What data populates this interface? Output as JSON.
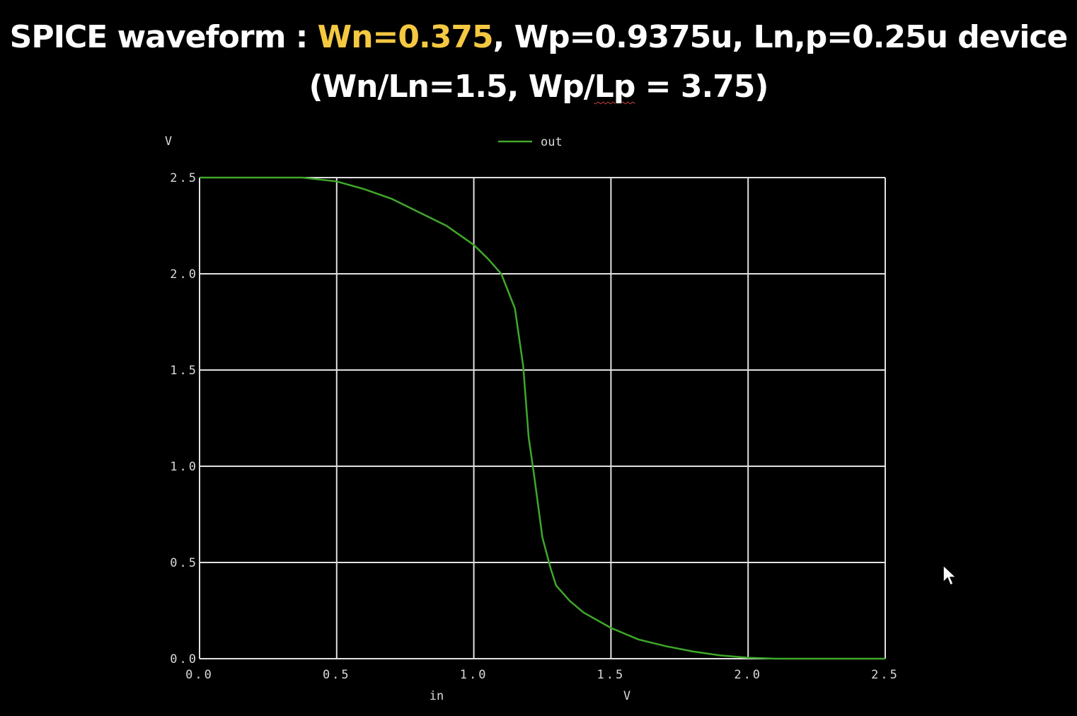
{
  "title": {
    "line1_prefix": "SPICE waveform : ",
    "line1_highlight": "Wn=0.375",
    "line1_suffix": ", Wp=0.9375u, Ln,p=0.25u device",
    "line2_prefix": "(Wn/Ln=1.5, Wp/",
    "line2_squiggle": "Lp",
    "line2_suffix": " = 3.75)"
  },
  "colors": {
    "background": "#000000",
    "title_text": "#ffffff",
    "title_highlight": "#f5c842",
    "grid": "#e0e0e0",
    "series_out": "#3fa82a",
    "tick_text": "#d8d8d8"
  },
  "chart_data": {
    "type": "line",
    "title": "",
    "xlabel": "in",
    "xunit": "V",
    "ylabel": "",
    "yunit": "V",
    "xlim": [
      0.0,
      2.5
    ],
    "ylim": [
      0.0,
      2.5
    ],
    "xticks": [
      "0.0",
      "0.5",
      "1.0",
      "1.5",
      "2.0",
      "2.5"
    ],
    "yticks": [
      "0.0",
      "0.5",
      "1.0",
      "1.5",
      "2.0",
      "2.5"
    ],
    "grid": true,
    "legend_position": "top-center",
    "series": [
      {
        "name": "out",
        "color": "#3fa82a",
        "x": [
          0.0,
          0.375,
          0.5,
          0.6,
          0.7,
          0.8,
          0.9,
          1.0,
          1.05,
          1.1,
          1.15,
          1.18,
          1.2,
          1.22,
          1.25,
          1.28,
          1.3,
          1.35,
          1.4,
          1.5,
          1.6,
          1.7,
          1.8,
          1.9,
          2.0,
          2.1,
          2.2,
          2.3,
          2.4,
          2.5
        ],
        "y": [
          2.5,
          2.5,
          2.48,
          2.44,
          2.39,
          2.32,
          2.25,
          2.15,
          2.08,
          2.0,
          1.82,
          1.52,
          1.15,
          0.95,
          0.63,
          0.47,
          0.38,
          0.3,
          0.24,
          0.16,
          0.1,
          0.065,
          0.037,
          0.017,
          0.005,
          0.0,
          0.0,
          0.0,
          0.0,
          0.0
        ]
      }
    ]
  }
}
